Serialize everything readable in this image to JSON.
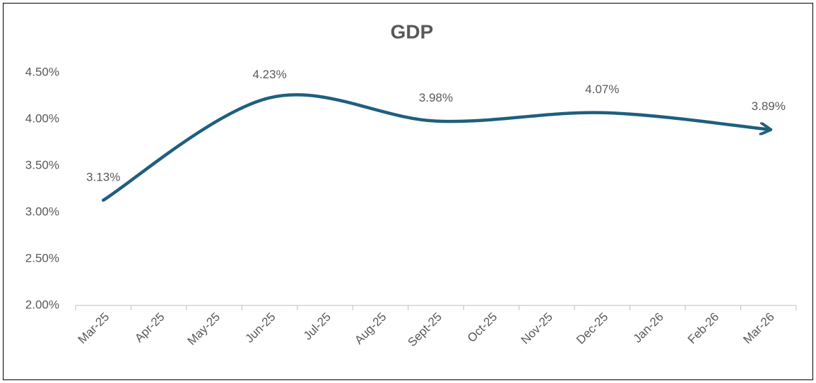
{
  "chart_data": {
    "type": "line",
    "title": "GDP",
    "categories": [
      "Mar-25",
      "Apr-25",
      "May-25",
      "Jun-25",
      "Jul-25",
      "Aug-25",
      "Sept-25",
      "Oct-25",
      "Nov-25",
      "Dec-25",
      "Jan-26",
      "Feb-26",
      "Mar-26"
    ],
    "series": [
      {
        "name": "GDP",
        "color": "#1f5f7f",
        "x": [
          "Mar-25",
          "Jun-25",
          "Sept-25",
          "Dec-25",
          "Mar-26"
        ],
        "values": [
          3.13,
          4.23,
          3.98,
          4.07,
          3.89
        ],
        "value_labels": [
          "3.13%",
          "4.23%",
          "3.98%",
          "4.07%",
          "3.89%"
        ]
      }
    ],
    "ylim": [
      2,
      4.5
    ],
    "yticks": [
      {
        "value": 2,
        "label": "2.00%"
      },
      {
        "value": 2.5,
        "label": "2.50%"
      },
      {
        "value": 3,
        "label": "3.00%"
      },
      {
        "value": 3.5,
        "label": "3.50%"
      },
      {
        "value": 4,
        "label": "4.00%"
      },
      {
        "value": 4.5,
        "label": "4.50%"
      }
    ],
    "grid": false,
    "smooth": true,
    "arrow_end": true
  }
}
